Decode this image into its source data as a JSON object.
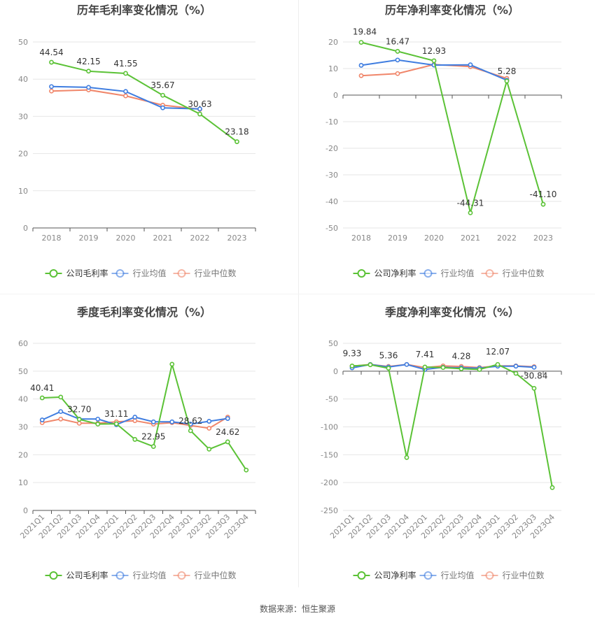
{
  "source": "数据来源：恒生聚源",
  "colors": {
    "company": "#5bc236",
    "industry_avg": "#3f7de0",
    "industry_median": "#f0866a",
    "grid": "#e6e6e6",
    "axis_text": "#888888"
  },
  "chart_data": [
    {
      "type": "line",
      "title": "历年毛利率变化情况（%）",
      "categories": [
        "2018",
        "2019",
        "2020",
        "2021",
        "2022",
        "2023"
      ],
      "ylim": [
        0,
        50
      ],
      "yticks": [
        0,
        10,
        20,
        30,
        40,
        50
      ],
      "label_series": 0,
      "label_indices": [
        0,
        1,
        2,
        3,
        4,
        5
      ],
      "rotate_x": false,
      "legend_position": "bottom",
      "series": [
        {
          "name": "公司毛利率",
          "values": [
            44.54,
            42.15,
            41.55,
            35.67,
            30.63,
            23.18
          ],
          "labels": [
            "44.54",
            "42.15",
            "41.55",
            "35.67",
            "30.63",
            "23.18"
          ]
        },
        {
          "name": "行业均值",
          "values": [
            38.0,
            37.8,
            36.7,
            32.3,
            32.0,
            null
          ]
        },
        {
          "name": "行业中位数",
          "values": [
            36.8,
            37.1,
            35.5,
            33.0,
            31.9,
            null
          ]
        }
      ]
    },
    {
      "type": "line",
      "title": "历年净利率变化情况（%）",
      "categories": [
        "2018",
        "2019",
        "2020",
        "2021",
        "2022",
        "2023"
      ],
      "ylim": [
        -50,
        20
      ],
      "yticks": [
        -50,
        -40,
        -30,
        -20,
        -10,
        0,
        10,
        20
      ],
      "label_series": 0,
      "label_indices": [
        0,
        1,
        2,
        3,
        4,
        5
      ],
      "rotate_x": false,
      "legend_position": "bottom",
      "series": [
        {
          "name": "公司净利率",
          "values": [
            19.84,
            16.47,
            12.93,
            -44.31,
            5.28,
            -41.1
          ],
          "labels": [
            "19.84",
            "16.47",
            "12.93",
            "-44.31",
            "5.28",
            "-41.10"
          ]
        },
        {
          "name": "行业均值",
          "values": [
            11.2,
            13.2,
            11.3,
            11.4,
            5.6,
            null
          ]
        },
        {
          "name": "行业中位数",
          "values": [
            7.3,
            8.1,
            11.5,
            10.7,
            6.3,
            null
          ]
        }
      ]
    },
    {
      "type": "line",
      "title": "季度毛利率变化情况（%）",
      "categories": [
        "2021Q1",
        "2021Q2",
        "2021Q3",
        "2021Q4",
        "2022Q1",
        "2022Q2",
        "2022Q3",
        "2022Q4",
        "2023Q1",
        "2023Q2",
        "2023Q3",
        "2023Q4"
      ],
      "ylim": [
        0,
        60
      ],
      "yticks": [
        0,
        10,
        20,
        30,
        40,
        50,
        60
      ],
      "label_series": 0,
      "label_indices": [
        0,
        2,
        4,
        6,
        8,
        10
      ],
      "rotate_x": true,
      "legend_position": "bottom",
      "series": [
        {
          "name": "公司毛利率",
          "values": [
            40.41,
            40.7,
            32.7,
            31.0,
            31.11,
            25.5,
            22.95,
            52.5,
            28.62,
            22.0,
            24.62,
            14.5
          ],
          "labels": [
            "40.41",
            "",
            "32.70",
            "",
            "31.11",
            "",
            "22.95",
            "",
            "28.62",
            "",
            "24.62",
            ""
          ]
        },
        {
          "name": "行业均值",
          "values": [
            32.5,
            35.5,
            32.8,
            32.8,
            30.8,
            33.5,
            31.8,
            31.8,
            31.0,
            32.0,
            33.0,
            null
          ]
        },
        {
          "name": "行业中位数",
          "values": [
            31.5,
            32.8,
            31.3,
            31.3,
            31.8,
            32.2,
            31.0,
            31.5,
            30.5,
            29.5,
            33.5,
            null
          ]
        }
      ]
    },
    {
      "type": "line",
      "title": "季度净利率变化情况（%）",
      "categories": [
        "2021Q1",
        "2021Q2",
        "2021Q3",
        "2021Q4",
        "2022Q1",
        "2022Q2",
        "2022Q3",
        "2022Q4",
        "2023Q1",
        "2023Q2",
        "2023Q3",
        "2023Q4"
      ],
      "ylim": [
        -250,
        50
      ],
      "yticks": [
        -250,
        -200,
        -150,
        -100,
        -50,
        0,
        50
      ],
      "label_series": 0,
      "label_indices": [
        0,
        2,
        4,
        6,
        8,
        10
      ],
      "rotate_x": true,
      "legend_position": "bottom",
      "series": [
        {
          "name": "公司净利率",
          "values": [
            9.33,
            11.5,
            5.36,
            -155.0,
            7.41,
            6.5,
            4.28,
            3.0,
            12.07,
            -4.0,
            -30.84,
            -209.0
          ],
          "labels": [
            "9.33",
            "",
            "5.36",
            "",
            "7.41",
            "",
            "4.28",
            "",
            "12.07",
            "",
            "-30.84",
            ""
          ]
        },
        {
          "name": "行业均值",
          "values": [
            6.0,
            12.0,
            7.5,
            12.0,
            3.0,
            7.0,
            6.0,
            5.5,
            9.0,
            9.0,
            7.0,
            null
          ]
        },
        {
          "name": "行业中位数",
          "values": [
            9.0,
            12.0,
            8.5,
            12.0,
            6.5,
            9.5,
            8.5,
            6.5,
            9.5,
            9.5,
            8.0,
            null
          ]
        }
      ]
    }
  ]
}
